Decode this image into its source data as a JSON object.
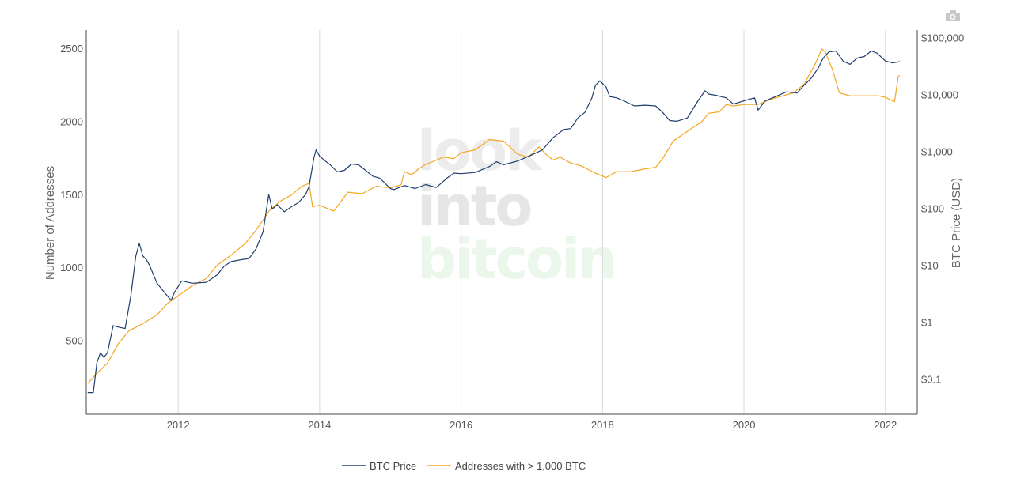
{
  "toolbar": {
    "camera_icon": "camera-icon"
  },
  "watermark": {
    "line1": "look",
    "line2": "into",
    "line3": "bitcoin"
  },
  "colors": {
    "btc": "#1f3f6e",
    "addr": "#f5a623",
    "grid": "#d9d9d9",
    "axis": "#444444"
  },
  "chart_data": {
    "type": "line",
    "xlabel": "",
    "ylabel": "Number of Addresses",
    "y2label": "BTC Price (USD)",
    "xlim": [
      2010.7,
      2022.45
    ],
    "ylim": [
      0,
      2630
    ],
    "y2lim": [
      0.025,
      140000
    ],
    "y2scale": "log",
    "grid": "vertical",
    "legend": "bottom",
    "x_ticks": [
      "2012",
      "2014",
      "2016",
      "2018",
      "2020",
      "2022"
    ],
    "x_tick_values": [
      2012,
      2014,
      2016,
      2018,
      2020,
      2022
    ],
    "y_ticks": [
      "500",
      "1000",
      "1500",
      "2000",
      "2500"
    ],
    "y_tick_values": [
      500,
      1000,
      1500,
      2000,
      2500
    ],
    "y2_ticks": [
      "$0.1",
      "$1",
      "$10",
      "$100",
      "$1,000",
      "$10,000",
      "$100,000"
    ],
    "y2_tick_values": [
      0.1,
      1,
      10,
      100,
      1000,
      10000,
      100000
    ],
    "series": [
      {
        "name": "BTC Price",
        "axis": "y2",
        "x": [
          2010.72,
          2010.8,
          2010.85,
          2010.9,
          2010.95,
          2011.0,
          2011.08,
          2011.15,
          2011.25,
          2011.33,
          2011.4,
          2011.45,
          2011.5,
          2011.55,
          2011.6,
          2011.7,
          2011.8,
          2011.9,
          2011.95,
          2012.05,
          2012.2,
          2012.4,
          2012.55,
          2012.65,
          2012.75,
          2012.9,
          2013.0,
          2013.1,
          2013.2,
          2013.28,
          2013.33,
          2013.4,
          2013.5,
          2013.6,
          2013.7,
          2013.8,
          2013.85,
          2013.92,
          2013.95,
          2014.0,
          2014.08,
          2014.15,
          2014.25,
          2014.35,
          2014.45,
          2014.55,
          2014.65,
          2014.75,
          2014.85,
          2015.0,
          2015.05,
          2015.2,
          2015.35,
          2015.5,
          2015.65,
          2015.8,
          2015.9,
          2016.0,
          2016.2,
          2016.4,
          2016.5,
          2016.6,
          2016.8,
          2017.0,
          2017.15,
          2017.3,
          2017.45,
          2017.55,
          2017.65,
          2017.75,
          2017.85,
          2017.9,
          2017.96,
          2018.05,
          2018.1,
          2018.2,
          2018.3,
          2018.45,
          2018.6,
          2018.75,
          2018.85,
          2018.95,
          2019.05,
          2019.2,
          2019.35,
          2019.45,
          2019.5,
          2019.6,
          2019.75,
          2019.85,
          2020.0,
          2020.15,
          2020.2,
          2020.3,
          2020.45,
          2020.6,
          2020.75,
          2020.85,
          2020.95,
          2021.05,
          2021.12,
          2021.2,
          2021.3,
          2021.4,
          2021.5,
          2021.6,
          2021.7,
          2021.8,
          2021.88,
          2022.0,
          2022.1,
          2022.2
        ],
        "values": [
          0.06,
          0.06,
          0.2,
          0.3,
          0.25,
          0.3,
          0.9,
          0.85,
          0.8,
          3,
          15,
          25,
          15,
          13,
          10,
          5,
          3.5,
          2.5,
          3.5,
          5.5,
          5,
          5.2,
          7,
          10,
          12,
          13,
          13.5,
          20,
          40,
          180,
          100,
          120,
          90,
          110,
          130,
          180,
          250,
          800,
          1100,
          850,
          700,
          600,
          450,
          480,
          620,
          600,
          480,
          380,
          350,
          230,
          220,
          260,
          230,
          270,
          240,
          350,
          430,
          420,
          440,
          560,
          680,
          600,
          700,
          900,
          1100,
          1800,
          2500,
          2600,
          4000,
          5000,
          9000,
          15000,
          18000,
          14000,
          9500,
          9000,
          8000,
          6500,
          6700,
          6500,
          5000,
          3600,
          3500,
          4000,
          8000,
          12000,
          10500,
          10000,
          9000,
          7000,
          8000,
          9000,
          5500,
          8000,
          9500,
          11500,
          11000,
          15000,
          20000,
          30000,
          45000,
          58000,
          60000,
          40000,
          35000,
          45000,
          48000,
          60000,
          55000,
          40000,
          37000,
          39000
        ]
      },
      {
        "name": "Addresses with > 1,000 BTC",
        "axis": "y",
        "x": [
          2010.72,
          2010.85,
          2011.0,
          2011.15,
          2011.3,
          2011.5,
          2011.7,
          2011.85,
          2012.0,
          2012.2,
          2012.4,
          2012.55,
          2012.75,
          2012.95,
          2013.1,
          2013.2,
          2013.3,
          2013.45,
          2013.6,
          2013.75,
          2013.85,
          2013.9,
          2014.0,
          2014.2,
          2014.4,
          2014.6,
          2014.8,
          2015.0,
          2015.15,
          2015.2,
          2015.3,
          2015.4,
          2015.5,
          2015.6,
          2015.75,
          2015.9,
          2016.0,
          2016.2,
          2016.4,
          2016.6,
          2016.8,
          2016.95,
          2017.1,
          2017.2,
          2017.3,
          2017.4,
          2017.55,
          2017.7,
          2017.9,
          2018.05,
          2018.2,
          2018.4,
          2018.6,
          2018.75,
          2018.85,
          2019.0,
          2019.15,
          2019.3,
          2019.4,
          2019.5,
          2019.65,
          2019.75,
          2019.85,
          2020.0,
          2020.2,
          2020.4,
          2020.55,
          2020.7,
          2020.85,
          2021.0,
          2021.1,
          2021.15,
          2021.25,
          2021.35,
          2021.5,
          2021.7,
          2021.9,
          2022.0,
          2022.08,
          2022.13,
          2022.18,
          2022.2
        ],
        "values": [
          210,
          280,
          350,
          480,
          570,
          620,
          680,
          760,
          810,
          880,
          930,
          1020,
          1090,
          1170,
          1260,
          1330,
          1400,
          1460,
          1500,
          1560,
          1580,
          1420,
          1430,
          1390,
          1520,
          1510,
          1560,
          1550,
          1570,
          1660,
          1640,
          1680,
          1710,
          1730,
          1760,
          1750,
          1790,
          1810,
          1880,
          1870,
          1780,
          1760,
          1830,
          1780,
          1740,
          1760,
          1720,
          1700,
          1650,
          1620,
          1660,
          1660,
          1680,
          1690,
          1750,
          1870,
          1920,
          1970,
          2000,
          2060,
          2070,
          2120,
          2110,
          2120,
          2120,
          2160,
          2180,
          2200,
          2260,
          2390,
          2500,
          2480,
          2360,
          2200,
          2180,
          2180,
          2180,
          2170,
          2150,
          2140,
          2310,
          2320
        ]
      }
    ]
  }
}
